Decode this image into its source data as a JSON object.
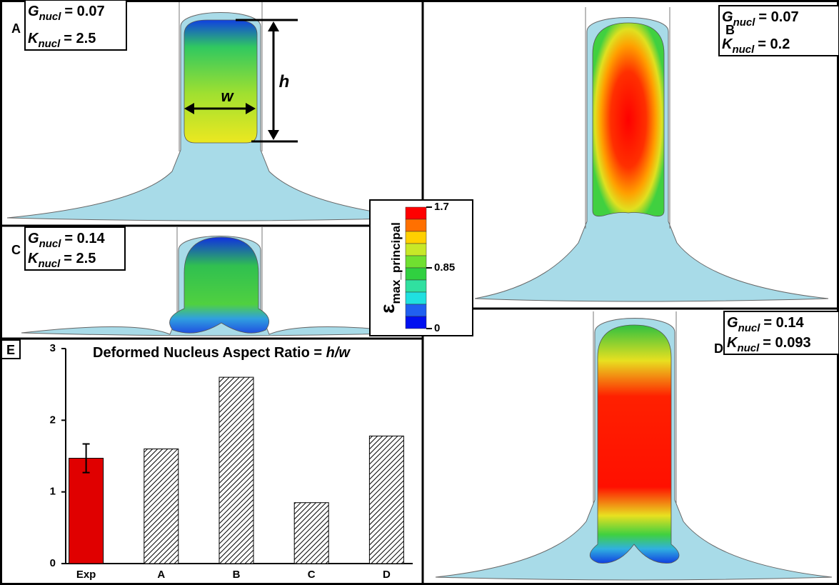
{
  "panels": [
    {
      "letter": "A",
      "params": [
        {
          "symbol": "G",
          "subscript": "nucl",
          "value": "= 0.07"
        },
        {
          "symbol": "K",
          "subscript": "nucl",
          "value": "= 2.5"
        }
      ],
      "width_label": "w",
      "height_label": "h"
    },
    {
      "letter": "B",
      "params": [
        {
          "symbol": "G",
          "subscript": "nucl",
          "value": "= 0.07"
        },
        {
          "symbol": "K",
          "subscript": "nucl",
          "value": "= 0.2"
        }
      ]
    },
    {
      "letter": "C",
      "params": [
        {
          "symbol": "G",
          "subscript": "nucl",
          "value": "= 0.14"
        },
        {
          "symbol": "K",
          "subscript": "nucl",
          "value": "= 2.5"
        }
      ]
    },
    {
      "letter": "D",
      "params": [
        {
          "symbol": "G",
          "subscript": "nucl",
          "value": "= 0.14"
        },
        {
          "symbol": "K",
          "subscript": "nucl",
          "value": "= 0.093"
        }
      ]
    }
  ],
  "colorbar": {
    "symbol": "ε",
    "subscript": "max_principal",
    "lim": [
      0,
      1.7
    ],
    "ticks": [
      0,
      0.85,
      1.7
    ]
  },
  "chart_data": {
    "type": "bar",
    "panel_letter": "E",
    "title": "Deformed Nucleus Aspect Ratio = ",
    "title_variable": "h/w",
    "categories": [
      "Exp",
      "A",
      "B",
      "C",
      "D"
    ],
    "values": [
      1.47,
      1.6,
      2.6,
      0.85,
      1.78
    ],
    "errors": [
      0.2,
      null,
      null,
      null,
      null
    ],
    "colors": [
      "#e00000",
      "#ffffff",
      "#ffffff",
      "#ffffff",
      "#ffffff"
    ],
    "hatched": [
      false,
      true,
      true,
      true,
      true
    ],
    "ylim": [
      0,
      3
    ],
    "yticks": [
      0,
      1,
      2,
      3
    ]
  }
}
